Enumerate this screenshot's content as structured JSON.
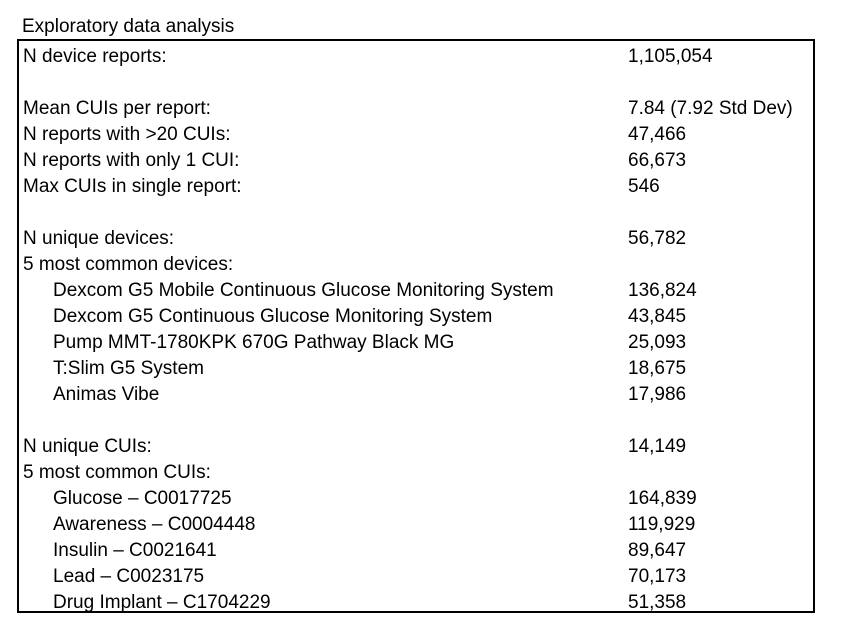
{
  "title": "Exploratory data analysis",
  "rows": [
    {
      "label": "N device reports:",
      "value": "1,105,054"
    },
    {
      "label": "Mean CUIs per report:",
      "value": "7.84 (7.92 Std Dev)"
    },
    {
      "label": "N reports with >20 CUIs:",
      "value": "47,466"
    },
    {
      "label": "N reports with only 1 CUI:",
      "value": "66,673"
    },
    {
      "label": "Max CUIs in single report:",
      "value": "546"
    },
    {
      "label": "N unique devices:",
      "value": "56,782"
    },
    {
      "label": "5 most common  devices:",
      "value": ""
    },
    {
      "label": "Dexcom G5 Mobile Continuous Glucose Monitoring System",
      "value": "136,824"
    },
    {
      "label": "Dexcom G5 Continuous Glucose Monitoring System",
      "value": "43,845"
    },
    {
      "label": "Pump MMT-1780KPK 670G Pathway Black MG",
      "value": "25,093"
    },
    {
      "label": "T:Slim G5 System",
      "value": "18,675"
    },
    {
      "label": "Animas Vibe",
      "value": "17,986"
    },
    {
      "label": "N unique CUIs:",
      "value": "14,149"
    },
    {
      "label": "5 most common  CUIs:",
      "value": ""
    },
    {
      "label": "Glucose – C0017725",
      "value": "164,839"
    },
    {
      "label": "Awareness – C0004448",
      "value": "119,929"
    },
    {
      "label": "Insulin – C0021641",
      "value": "89,647"
    },
    {
      "label": "Lead – C0023175",
      "value": "70,173"
    },
    {
      "label": "Drug Implant – C1704229",
      "value": "51,358"
    }
  ]
}
